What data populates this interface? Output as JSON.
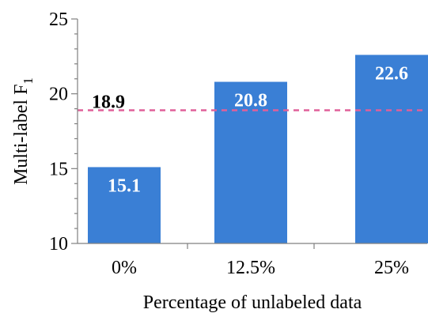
{
  "chart_data": {
    "type": "bar",
    "categories": [
      "0%",
      "12.5%",
      "25%"
    ],
    "values": [
      15.1,
      20.8,
      22.6
    ],
    "data_labels": [
      "15.1",
      "20.8",
      "22.6"
    ],
    "ylim": [
      10,
      25
    ],
    "yticks": [
      "10",
      "15",
      "20",
      "25"
    ],
    "ylabel_main": "Multi-label  F",
    "ylabel_sub": "1",
    "xlabel": "Percentage of unlabeled data",
    "reference_line": {
      "value": 18.9,
      "label": "18.9",
      "style": "dashed",
      "color": "#e0609a"
    },
    "bar_color": "#3a7fd5",
    "grid": false,
    "legend": "none"
  }
}
